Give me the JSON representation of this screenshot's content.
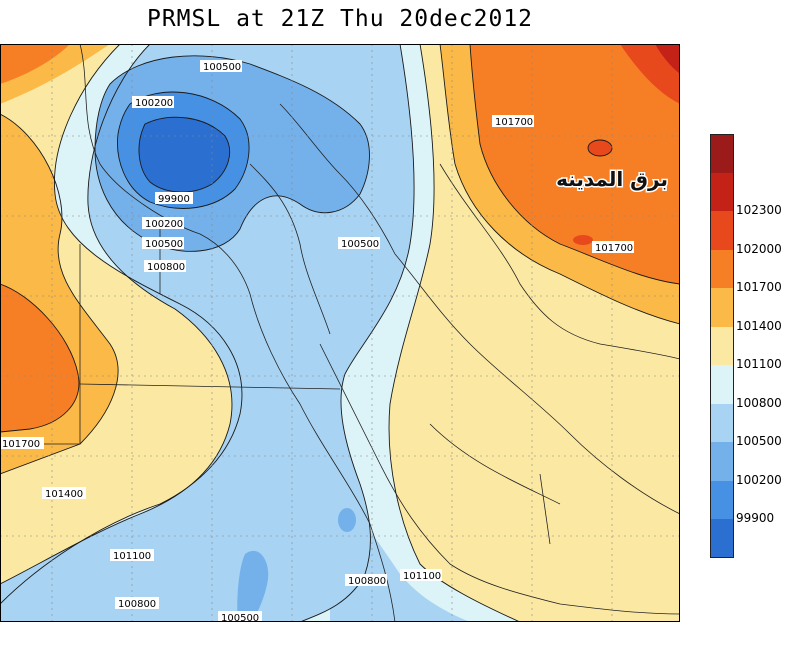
{
  "title": "PRMSL at 21Z Thu 20dec2012",
  "watermark": "برق المدينه",
  "legend": {
    "levels": [
      {
        "label": "",
        "color": "#9b1a1a"
      },
      {
        "label": "102300",
        "color": "#c42117"
      },
      {
        "label": "102000",
        "color": "#e8491c"
      },
      {
        "label": "101700",
        "color": "#f67f26"
      },
      {
        "label": "101400",
        "color": "#fbb947"
      },
      {
        "label": "101100",
        "color": "#fbe9a3"
      },
      {
        "label": "100800",
        "color": "#dcf3f7"
      },
      {
        "label": "100500",
        "color": "#a8d3f2"
      },
      {
        "label": "100200",
        "color": "#74b1ea"
      },
      {
        "label": "99900",
        "color": "#4691e3"
      },
      {
        "label": "",
        "color": "#2b6fd0"
      }
    ]
  },
  "contour_labels": [
    "100500",
    "100200",
    "99900",
    "100200",
    "100500",
    "100800",
    "100500",
    "101700",
    "101700",
    "101700",
    "101400",
    "101100",
    "100800",
    "100800",
    "101100",
    "100500"
  ]
}
